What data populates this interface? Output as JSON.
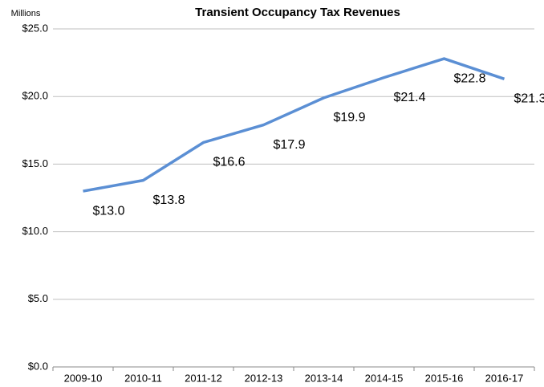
{
  "chart_data": {
    "type": "line",
    "title": "Transient Occupancy Tax Revenues",
    "y_label": "Millions",
    "categories": [
      "2009-10",
      "2010-11",
      "2011-12",
      "2012-13",
      "2013-14",
      "2014-15",
      "2015-16",
      "2016-17"
    ],
    "series": [
      {
        "name": "Transient Occupancy Tax Revenues",
        "color": "#5b8fd4",
        "values": [
          13.0,
          13.8,
          16.6,
          17.9,
          19.9,
          21.4,
          22.8,
          21.3
        ],
        "value_labels": [
          "$13.0",
          "$13.8",
          "$16.6",
          "$17.9",
          "$19.9",
          "$21.4",
          "$22.8",
          "$21.3"
        ]
      }
    ],
    "ylim": [
      0,
      25
    ],
    "yticks": [
      {
        "value": 0,
        "label": "$0.0"
      },
      {
        "value": 5,
        "label": "$5.0"
      },
      {
        "value": 10,
        "label": "$10.0"
      },
      {
        "value": 15,
        "label": "$15.0"
      },
      {
        "value": 20,
        "label": "$20.0"
      },
      {
        "value": 25,
        "label": "$25.0"
      }
    ],
    "grid": true
  }
}
